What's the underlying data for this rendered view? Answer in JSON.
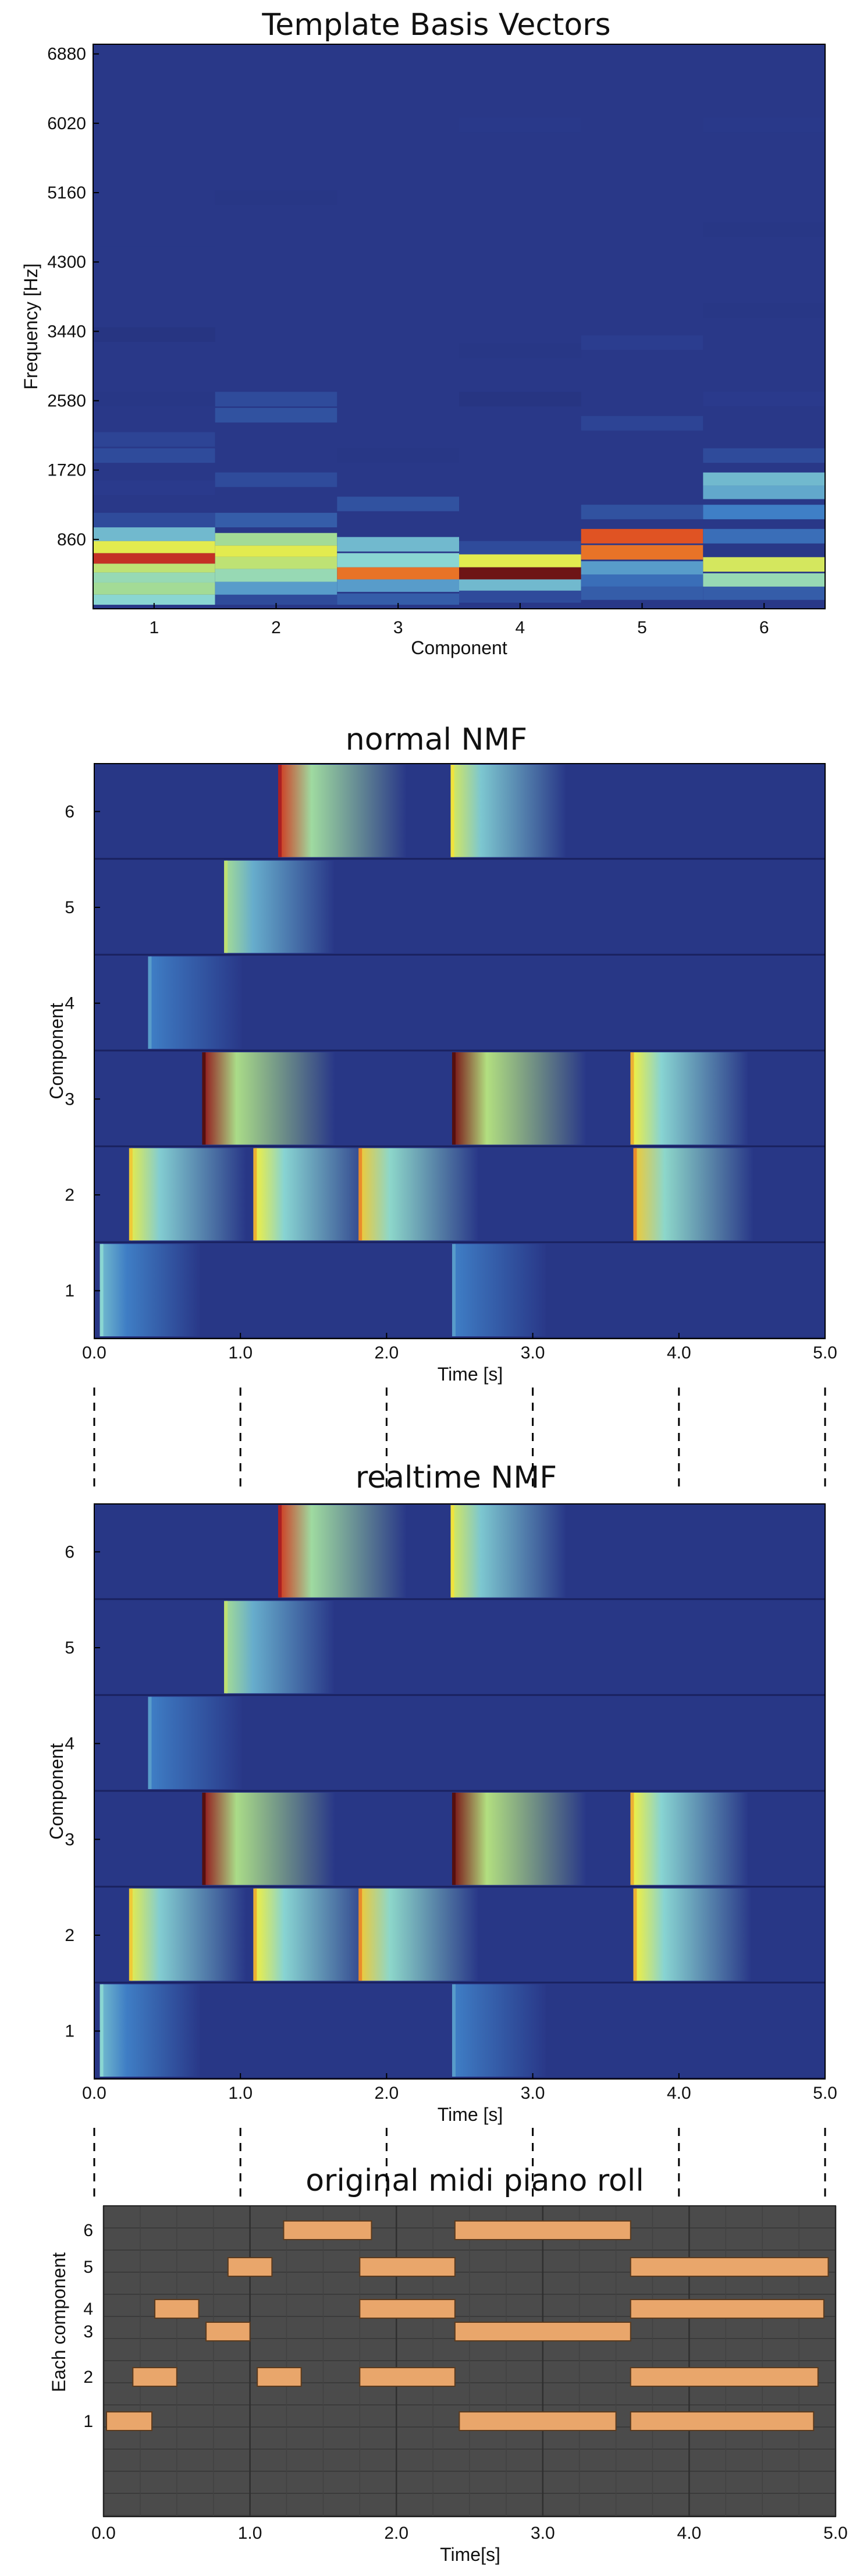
{
  "chart_data": [
    {
      "type": "heatmap",
      "title": "Template Basis Vectors",
      "xlabel": "Component",
      "ylabel": "Frequency [Hz]",
      "x_ticks": [
        "1",
        "2",
        "3",
        "4",
        "5",
        "6"
      ],
      "y_ticks": [
        "6880",
        "6020",
        "5160",
        "4300",
        "3440",
        "2580",
        "1720",
        "860"
      ],
      "ylim": [
        0,
        7000
      ],
      "colormap": "jet",
      "components": [
        {
          "component": 1,
          "bands": [
            {
              "f": 100,
              "v": 0.5
            },
            {
              "f": 250,
              "v": 0.6
            },
            {
              "f": 400,
              "v": 0.55
            },
            {
              "f": 500,
              "v": 0.65
            },
            {
              "f": 620,
              "v": 0.9
            },
            {
              "f": 760,
              "v": 0.7
            },
            {
              "f": 920,
              "v": 0.45
            },
            {
              "f": 1100,
              "v": 0.2
            },
            {
              "f": 1500,
              "v": 0.15
            },
            {
              "f": 1900,
              "v": 0.2
            },
            {
              "f": 2100,
              "v": 0.18
            },
            {
              "f": 2600,
              "v": 0.12
            },
            {
              "f": 3400,
              "v": 0.1
            },
            {
              "f": 4400,
              "v": 0.13
            }
          ]
        },
        {
          "component": 2,
          "bands": [
            {
              "f": 100,
              "v": 0.2
            },
            {
              "f": 250,
              "v": 0.4
            },
            {
              "f": 420,
              "v": 0.55
            },
            {
              "f": 570,
              "v": 0.65
            },
            {
              "f": 720,
              "v": 0.7
            },
            {
              "f": 850,
              "v": 0.6
            },
            {
              "f": 1100,
              "v": 0.25
            },
            {
              "f": 1600,
              "v": 0.2
            },
            {
              "f": 2400,
              "v": 0.22
            },
            {
              "f": 2600,
              "v": 0.2
            },
            {
              "f": 5100,
              "v": 0.12
            }
          ]
        },
        {
          "component": 3,
          "bands": [
            {
              "f": 100,
              "v": 0.25
            },
            {
              "f": 300,
              "v": 0.4
            },
            {
              "f": 430,
              "v": 0.82
            },
            {
              "f": 600,
              "v": 0.5
            },
            {
              "f": 800,
              "v": 0.45
            },
            {
              "f": 1300,
              "v": 0.22
            },
            {
              "f": 1900,
              "v": 0.12
            }
          ]
        },
        {
          "component": 4,
          "bands": [
            {
              "f": 150,
              "v": 0.2
            },
            {
              "f": 300,
              "v": 0.45
            },
            {
              "f": 430,
              "v": 0.98
            },
            {
              "f": 600,
              "v": 0.7
            },
            {
              "f": 750,
              "v": 0.2
            },
            {
              "f": 2600,
              "v": 0.1
            },
            {
              "f": 3200,
              "v": 0.12
            },
            {
              "f": 6000,
              "v": 0.14
            }
          ]
        },
        {
          "component": 5,
          "bands": [
            {
              "f": 200,
              "v": 0.25
            },
            {
              "f": 350,
              "v": 0.3
            },
            {
              "f": 500,
              "v": 0.4
            },
            {
              "f": 700,
              "v": 0.82
            },
            {
              "f": 900,
              "v": 0.85
            },
            {
              "f": 1200,
              "v": 0.22
            },
            {
              "f": 2300,
              "v": 0.18
            },
            {
              "f": 3300,
              "v": 0.16
            }
          ]
        },
        {
          "component": 6,
          "bands": [
            {
              "f": 200,
              "v": 0.25
            },
            {
              "f": 350,
              "v": 0.55
            },
            {
              "f": 550,
              "v": 0.68
            },
            {
              "f": 900,
              "v": 0.3
            },
            {
              "f": 1200,
              "v": 0.35
            },
            {
              "f": 1450,
              "v": 0.42
            },
            {
              "f": 1600,
              "v": 0.45
            },
            {
              "f": 1900,
              "v": 0.2
            },
            {
              "f": 2600,
              "v": 0.15
            },
            {
              "f": 3700,
              "v": 0.12
            },
            {
              "f": 4700,
              "v": 0.12
            },
            {
              "f": 6000,
              "v": 0.14
            }
          ]
        }
      ]
    },
    {
      "type": "heatmap",
      "title": "normal NMF",
      "xlabel": "Time [s]",
      "ylabel": "Component",
      "x_ticks": [
        "0.0",
        "1.0",
        "2.0",
        "3.0",
        "4.0",
        "5.0"
      ],
      "y_ticks": [
        "1",
        "2",
        "3",
        "4",
        "5",
        "6"
      ],
      "xlim": [
        0,
        5
      ],
      "colormap": "jet",
      "activations": [
        {
          "component": 1,
          "onsets": [
            {
              "t": 0.05,
              "a": 0.45
            },
            {
              "t": 2.46,
              "a": 0.35
            }
          ]
        },
        {
          "component": 2,
          "onsets": [
            {
              "t": 0.25,
              "a": 0.7
            },
            {
              "t": 1.1,
              "a": 0.72
            },
            {
              "t": 1.82,
              "a": 0.75
            },
            {
              "t": 3.7,
              "a": 0.75
            }
          ]
        },
        {
          "component": 3,
          "onsets": [
            {
              "t": 0.75,
              "a": 0.95
            },
            {
              "t": 2.46,
              "a": 0.97
            },
            {
              "t": 3.68,
              "a": 0.72
            }
          ]
        },
        {
          "component": 4,
          "onsets": [
            {
              "t": 0.38,
              "a": 0.35
            }
          ]
        },
        {
          "component": 5,
          "onsets": [
            {
              "t": 0.9,
              "a": 0.6
            }
          ]
        },
        {
          "component": 6,
          "onsets": [
            {
              "t": 1.27,
              "a": 0.88
            },
            {
              "t": 2.45,
              "a": 0.68
            }
          ]
        }
      ]
    },
    {
      "type": "heatmap",
      "title": "realtime NMF",
      "xlabel": "Time [s]",
      "ylabel": "Component",
      "x_ticks": [
        "0.0",
        "1.0",
        "2.0",
        "3.0",
        "4.0",
        "5.0"
      ],
      "y_ticks": [
        "1",
        "2",
        "3",
        "4",
        "5",
        "6"
      ],
      "xlim": [
        0,
        5
      ],
      "colormap": "jet",
      "activations": [
        {
          "component": 1,
          "onsets": [
            {
              "t": 0.05,
              "a": 0.45
            },
            {
              "t": 2.46,
              "a": 0.35
            }
          ]
        },
        {
          "component": 2,
          "onsets": [
            {
              "t": 0.25,
              "a": 0.7
            },
            {
              "t": 1.1,
              "a": 0.72
            },
            {
              "t": 1.82,
              "a": 0.75
            },
            {
              "t": 3.7,
              "a": 0.72
            }
          ]
        },
        {
          "component": 3,
          "onsets": [
            {
              "t": 0.75,
              "a": 0.95
            },
            {
              "t": 2.46,
              "a": 0.97
            },
            {
              "t": 3.68,
              "a": 0.72
            }
          ]
        },
        {
          "component": 4,
          "onsets": [
            {
              "t": 0.38,
              "a": 0.35
            }
          ]
        },
        {
          "component": 5,
          "onsets": [
            {
              "t": 0.9,
              "a": 0.6
            }
          ]
        },
        {
          "component": 6,
          "onsets": [
            {
              "t": 1.27,
              "a": 0.88
            },
            {
              "t": 2.45,
              "a": 0.68
            }
          ]
        }
      ]
    },
    {
      "type": "bar",
      "title": "original midi piano roll",
      "xlabel": "Time[s]",
      "ylabel": "Each component",
      "x_ticks": [
        "0.0",
        "1.0",
        "2.0",
        "3.0",
        "4.0",
        "5.0"
      ],
      "y_ticks": [
        "1",
        "2",
        "3",
        "4",
        "5",
        "6"
      ],
      "xlim": [
        0,
        5
      ],
      "note_color": "#e9a66b",
      "notes": [
        {
          "component": 6,
          "start": 1.23,
          "end": 1.83
        },
        {
          "component": 6,
          "start": 2.4,
          "end": 3.6
        },
        {
          "component": 5,
          "start": 0.85,
          "end": 1.15
        },
        {
          "component": 5,
          "start": 1.75,
          "end": 2.4
        },
        {
          "component": 5,
          "start": 3.6,
          "end": 4.95
        },
        {
          "component": 4,
          "start": 0.35,
          "end": 0.65
        },
        {
          "component": 4,
          "start": 1.75,
          "end": 2.4
        },
        {
          "component": 4,
          "start": 3.6,
          "end": 4.92
        },
        {
          "component": 3,
          "start": 0.7,
          "end": 1.0
        },
        {
          "component": 3,
          "start": 2.4,
          "end": 3.6
        },
        {
          "component": 2,
          "start": 0.2,
          "end": 0.5
        },
        {
          "component": 2,
          "start": 1.05,
          "end": 1.35
        },
        {
          "component": 2,
          "start": 1.75,
          "end": 2.4
        },
        {
          "component": 2,
          "start": 3.6,
          "end": 4.88
        },
        {
          "component": 1,
          "start": 0.02,
          "end": 0.33
        },
        {
          "component": 1,
          "start": 2.43,
          "end": 3.5
        },
        {
          "component": 1,
          "start": 3.6,
          "end": 4.85
        }
      ]
    }
  ]
}
